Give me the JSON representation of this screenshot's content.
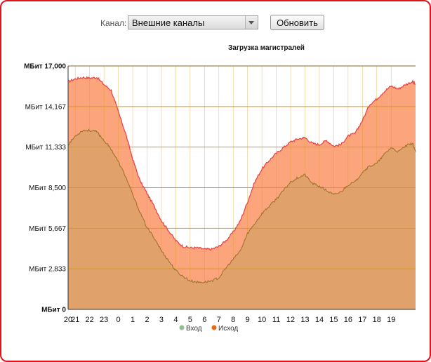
{
  "controls": {
    "channel_label": "Канал:",
    "channel_selected": "Внешние каналы",
    "refresh_label": "Обновить"
  },
  "colors": {
    "frame": "#e0151b",
    "out_fill": "#fca57d",
    "out_line": "#e6484a",
    "in_fill": "#e0a26a",
    "in_line": "#9f7430",
    "grid": "#d79a15",
    "legend_in": "#90c090",
    "legend_out": "#e86a10"
  },
  "chart_data": {
    "type": "area",
    "title": "Загрузка магистралей",
    "ylim": [
      0,
      17000
    ],
    "yticks": [
      {
        "value": 0,
        "label": "МБит 0"
      },
      {
        "value": 2833,
        "label": "МБит 2,833"
      },
      {
        "value": 5667,
        "label": "МБит 5,667"
      },
      {
        "value": 8500,
        "label": "МБит 8,500"
      },
      {
        "value": 11333,
        "label": "МБит 11,333"
      },
      {
        "value": 14167,
        "label": "МБит 14,167"
      },
      {
        "value": 17000,
        "label": "МБит 17,000"
      }
    ],
    "xlim": [
      20,
      44.2
    ],
    "xticks": [
      {
        "x": 20,
        "label": "20"
      },
      {
        "x": 20.5,
        "label": "21"
      },
      {
        "x": 21.5,
        "label": "22"
      },
      {
        "x": 22.5,
        "label": "23"
      },
      {
        "x": 23.5,
        "label": "0"
      },
      {
        "x": 24.5,
        "label": "1"
      },
      {
        "x": 25.5,
        "label": "2"
      },
      {
        "x": 26.5,
        "label": "3"
      },
      {
        "x": 27.5,
        "label": "4"
      },
      {
        "x": 28.5,
        "label": "5"
      },
      {
        "x": 29.5,
        "label": "6"
      },
      {
        "x": 30.5,
        "label": "7"
      },
      {
        "x": 31.5,
        "label": "8"
      },
      {
        "x": 32.5,
        "label": "9"
      },
      {
        "x": 33.5,
        "label": "10"
      },
      {
        "x": 34.5,
        "label": "11"
      },
      {
        "x": 35.5,
        "label": "12"
      },
      {
        "x": 36.5,
        "label": "13"
      },
      {
        "x": 37.5,
        "label": "14"
      },
      {
        "x": 38.5,
        "label": "15"
      },
      {
        "x": 39.5,
        "label": "16"
      },
      {
        "x": 40.5,
        "label": "17"
      },
      {
        "x": 41.5,
        "label": "18"
      },
      {
        "x": 42.5,
        "label": "19"
      }
    ],
    "series": [
      {
        "name": "Исход",
        "points": [
          [
            20,
            15900
          ],
          [
            20.5,
            16100
          ],
          [
            21,
            16200
          ],
          [
            21.5,
            16150
          ],
          [
            22,
            16200
          ],
          [
            22.5,
            15700
          ],
          [
            23,
            15300
          ],
          [
            23.5,
            13800
          ],
          [
            24,
            12300
          ],
          [
            24.5,
            10500
          ],
          [
            25,
            9000
          ],
          [
            25.5,
            8100
          ],
          [
            26,
            7200
          ],
          [
            26.5,
            6200
          ],
          [
            27,
            5500
          ],
          [
            27.5,
            4800
          ],
          [
            28,
            4400
          ],
          [
            28.5,
            4300
          ],
          [
            29,
            4300
          ],
          [
            29.5,
            4200
          ],
          [
            30,
            4200
          ],
          [
            30.5,
            4400
          ],
          [
            31,
            4800
          ],
          [
            31.5,
            5400
          ],
          [
            32,
            6200
          ],
          [
            32.5,
            7500
          ],
          [
            33,
            8900
          ],
          [
            33.5,
            9800
          ],
          [
            34,
            10400
          ],
          [
            34.5,
            10900
          ],
          [
            35,
            11300
          ],
          [
            35.5,
            11700
          ],
          [
            36,
            11900
          ],
          [
            36.5,
            12000
          ],
          [
            37,
            11600
          ],
          [
            37.5,
            11500
          ],
          [
            38,
            11800
          ],
          [
            38.5,
            11400
          ],
          [
            39,
            11500
          ],
          [
            39.5,
            12100
          ],
          [
            40,
            12300
          ],
          [
            40.5,
            13200
          ],
          [
            41,
            14300
          ],
          [
            41.5,
            14700
          ],
          [
            42,
            15200
          ],
          [
            42.5,
            15600
          ],
          [
            43,
            15400
          ],
          [
            43.5,
            15700
          ],
          [
            44,
            15900
          ],
          [
            44.2,
            15700
          ]
        ]
      },
      {
        "name": "Вход",
        "points": [
          [
            20,
            11500
          ],
          [
            20.5,
            12100
          ],
          [
            21,
            12500
          ],
          [
            21.5,
            12500
          ],
          [
            22,
            12400
          ],
          [
            22.5,
            11800
          ],
          [
            23,
            11200
          ],
          [
            23.5,
            10300
          ],
          [
            24,
            9300
          ],
          [
            24.5,
            8000
          ],
          [
            25,
            6800
          ],
          [
            25.5,
            5700
          ],
          [
            26,
            5000
          ],
          [
            26.5,
            4100
          ],
          [
            27,
            3400
          ],
          [
            27.5,
            2700
          ],
          [
            28,
            2300
          ],
          [
            28.5,
            2000
          ],
          [
            29,
            1900
          ],
          [
            29.5,
            1900
          ],
          [
            30,
            2000
          ],
          [
            30.5,
            2200
          ],
          [
            31,
            2900
          ],
          [
            31.5,
            3500
          ],
          [
            32,
            4100
          ],
          [
            32.5,
            5300
          ],
          [
            33,
            6000
          ],
          [
            33.5,
            6700
          ],
          [
            34,
            7200
          ],
          [
            34.5,
            7700
          ],
          [
            35,
            8300
          ],
          [
            35.5,
            8900
          ],
          [
            36,
            9200
          ],
          [
            36.5,
            9400
          ],
          [
            37,
            8800
          ],
          [
            37.5,
            8600
          ],
          [
            38,
            8300
          ],
          [
            38.5,
            8000
          ],
          [
            39,
            8200
          ],
          [
            39.5,
            8700
          ],
          [
            40,
            8900
          ],
          [
            40.5,
            9600
          ],
          [
            41,
            10000
          ],
          [
            41.5,
            10200
          ],
          [
            42,
            10800
          ],
          [
            42.5,
            11300
          ],
          [
            43,
            11000
          ],
          [
            43.5,
            11400
          ],
          [
            44,
            11600
          ],
          [
            44.2,
            11000
          ]
        ]
      }
    ],
    "legend": [
      {
        "name": "Вход",
        "color": "#90c090"
      },
      {
        "name": "Исход",
        "color": "#e86a10"
      }
    ],
    "legend_position": "bottom",
    "grid": true
  }
}
